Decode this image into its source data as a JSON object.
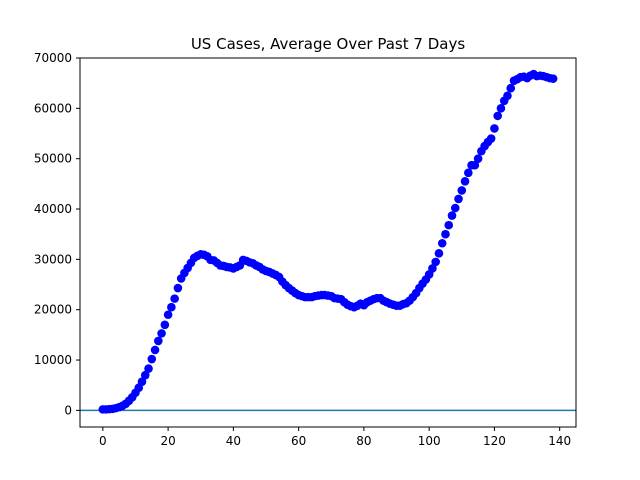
{
  "chart_data": {
    "type": "scatter",
    "title": "US Cases, Average Over Past 7 Days",
    "xlabel": "",
    "ylabel": "",
    "xlim": [
      -7,
      145
    ],
    "ylim": [
      -3300,
      70000
    ],
    "xticks": [
      0,
      20,
      40,
      60,
      80,
      100,
      120,
      140
    ],
    "yticks": [
      0,
      10000,
      20000,
      30000,
      40000,
      50000,
      60000,
      70000
    ],
    "grid": false,
    "legend": "none",
    "marker_color": "#0000ff",
    "reference_line": {
      "y": 0,
      "color": "#1f77b4"
    },
    "x": [
      0,
      1,
      2,
      3,
      4,
      5,
      6,
      7,
      8,
      9,
      10,
      11,
      12,
      13,
      14,
      15,
      16,
      17,
      18,
      19,
      20,
      21,
      22,
      23,
      24,
      25,
      26,
      27,
      28,
      29,
      30,
      31,
      32,
      33,
      34,
      35,
      36,
      37,
      38,
      39,
      40,
      41,
      42,
      43,
      44,
      45,
      46,
      47,
      48,
      49,
      50,
      51,
      52,
      53,
      54,
      55,
      56,
      57,
      58,
      59,
      60,
      61,
      62,
      63,
      64,
      65,
      66,
      67,
      68,
      69,
      70,
      71,
      72,
      73,
      74,
      75,
      76,
      77,
      78,
      79,
      80,
      81,
      82,
      83,
      84,
      85,
      86,
      87,
      88,
      89,
      90,
      91,
      92,
      93,
      94,
      95,
      96,
      97,
      98,
      99,
      100,
      101,
      102,
      103,
      104,
      105,
      106,
      107,
      108,
      109,
      110,
      111,
      112,
      113,
      114,
      115,
      116,
      117,
      118,
      119,
      120,
      121,
      122,
      123,
      124,
      125,
      126,
      127,
      128,
      129,
      130,
      131,
      132,
      133,
      134,
      135,
      136,
      137,
      138
    ],
    "y": [
      200,
      200,
      250,
      300,
      450,
      650,
      900,
      1300,
      1900,
      2600,
      3500,
      4500,
      5700,
      7000,
      8300,
      10200,
      12000,
      13800,
      15300,
      17000,
      19000,
      20500,
      22200,
      24300,
      26200,
      27300,
      28300,
      29300,
      30300,
      30700,
      31000,
      30900,
      30600,
      29900,
      29800,
      29300,
      28800,
      28700,
      28500,
      28400,
      28200,
      28500,
      28800,
      29900,
      29700,
      29400,
      29200,
      28800,
      28500,
      28000,
      27700,
      27500,
      27200,
      26900,
      26500,
      25600,
      24900,
      24300,
      23800,
      23300,
      22900,
      22700,
      22500,
      22500,
      22500,
      22700,
      22800,
      22900,
      22900,
      22800,
      22700,
      22300,
      22200,
      22100,
      21500,
      21000,
      20700,
      20500,
      20800,
      21200,
      20900,
      21500,
      21800,
      22100,
      22300,
      22300,
      21800,
      21500,
      21200,
      21000,
      20800,
      20800,
      21100,
      21300,
      21800,
      22500,
      23300,
      24300,
      25200,
      26000,
      27000,
      28200,
      29500,
      31200,
      33200,
      35000,
      36800,
      38700,
      40200,
      42000,
      43700,
      45500,
      47200,
      48700,
      48700,
      50000,
      51500,
      52500,
      53300,
      54000,
      56000,
      58500,
      60000,
      61500,
      62500,
      64000,
      65500,
      65800,
      66200,
      66300,
      66000,
      66500,
      66800,
      66400,
      66500,
      66400,
      66200,
      66000,
      65900
    ]
  }
}
